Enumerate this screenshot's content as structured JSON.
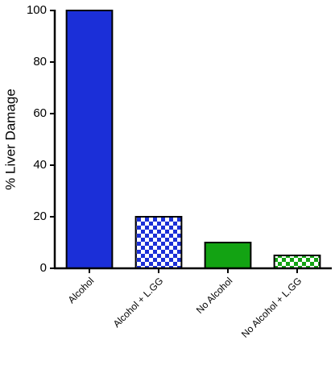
{
  "chart_data": {
    "type": "bar",
    "y_label": "% Liver Damage",
    "categories": [
      "Alcohol",
      "Alcohol + L.GG",
      "No Alcohol",
      "No Alcohol + L.GG"
    ],
    "values": [
      100,
      20,
      10,
      5
    ],
    "colors": [
      "#1b2fd8",
      "#1b2fd8",
      "#13a313",
      "#13a313"
    ],
    "fill_styles": [
      "solid",
      "checkered",
      "solid",
      "checkered"
    ],
    "ylim": [
      0,
      100
    ],
    "yticks": [
      0,
      20,
      40,
      60,
      80,
      100
    ],
    "grid": false
  }
}
